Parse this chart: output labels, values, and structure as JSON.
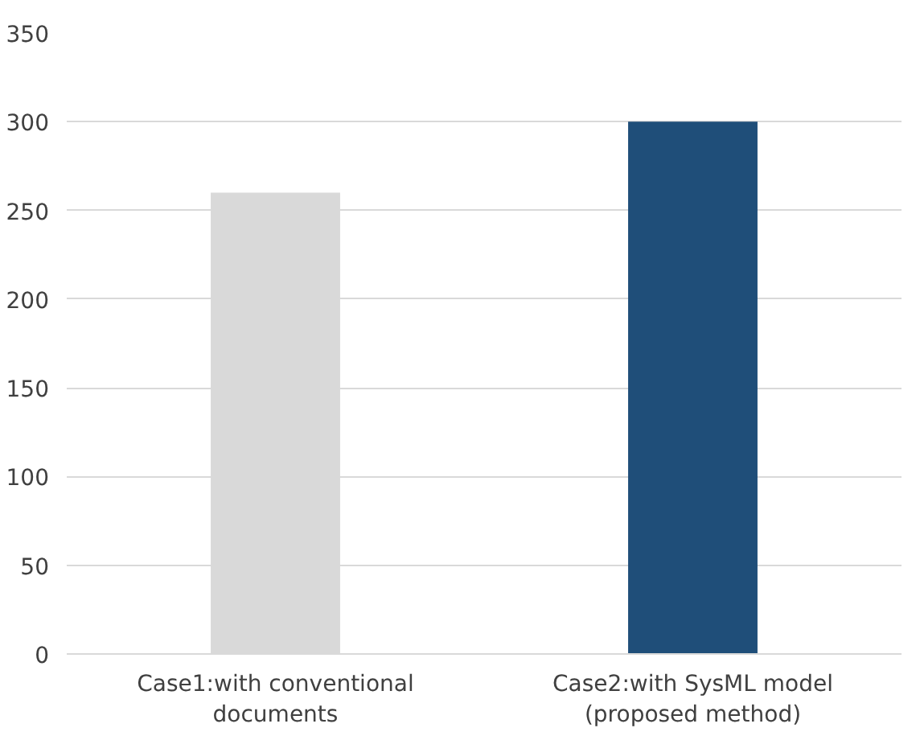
{
  "chart_data": {
    "type": "bar",
    "categories": [
      "Case1:with conventional\ndocuments",
      "Case2:with SysML model\n(proposed method)"
    ],
    "values": [
      260,
      300
    ],
    "colors": [
      "#d9d9d9",
      "#1f4e79"
    ],
    "ylim": [
      0,
      350
    ],
    "yticks": [
      0,
      50,
      100,
      150,
      200,
      250,
      300,
      350
    ],
    "grid": "y"
  }
}
